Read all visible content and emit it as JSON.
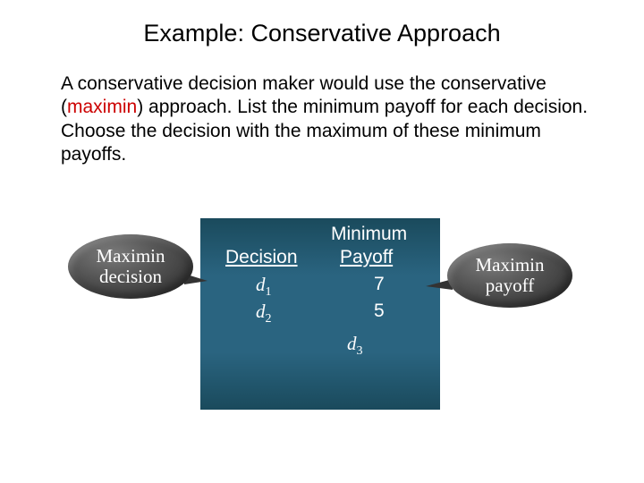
{
  "title": "Example:  Conservative Approach",
  "paragraph": {
    "pre": "A conservative decision maker would use the conservative (",
    "highlight": "maximin",
    "post": ") approach.  List the minimum payoff for each decision.  Choose the decision with the maximum of these minimum payoffs."
  },
  "panel": {
    "background_gradient": [
      "#1a4a5c",
      "#2a6480",
      "#1a4a5c"
    ],
    "text_color": "#ffffff",
    "min_header": "Minimum",
    "decision_header": "Decision",
    "payoff_header": "Payoff",
    "rows": [
      {
        "decision_var": "d",
        "decision_sub": "1",
        "payoff": "7"
      },
      {
        "decision_var": "d",
        "decision_sub": "2",
        "payoff": "5"
      }
    ],
    "extra_decision": {
      "var": "d",
      "sub": "3"
    }
  },
  "callouts": {
    "left": {
      "line1": "Maximin",
      "line2": "decision"
    },
    "right": {
      "line1": "Maximin",
      "line2": "payoff"
    }
  },
  "colors": {
    "highlight": "#cc0000",
    "text": "#000000",
    "callout_gradient": [
      "#7a7a7a",
      "#555555",
      "#2a2a2a"
    ],
    "callout_text": "#ffffff"
  },
  "fonts": {
    "title_size": 27,
    "body_size": 21,
    "callout_family": "Times New Roman"
  }
}
